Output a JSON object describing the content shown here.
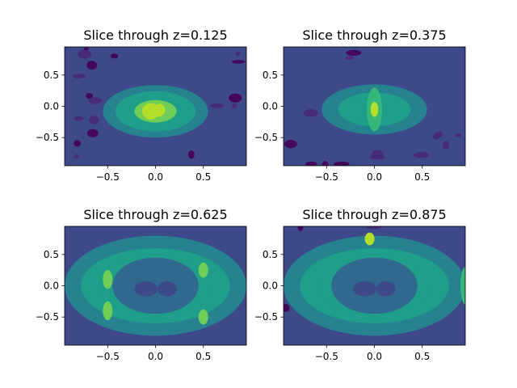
{
  "colormap": [
    "#440154",
    "#482878",
    "#3e4989",
    "#31688e",
    "#26828e",
    "#1f9e89",
    "#35b779",
    "#6ece58",
    "#b5de2b",
    "#fde725"
  ],
  "chart_data": [
    {
      "type": "heatmap",
      "subtype": "filled-contour",
      "title": "Slice through z=0.125",
      "xlabel": "",
      "ylabel": "",
      "xlim": [
        -0.95,
        0.95
      ],
      "ylim": [
        -0.95,
        0.95
      ],
      "xticks": [
        -0.5,
        0.0,
        0.5
      ],
      "xtick_labels": [
        "−0.5",
        "0.0",
        "0.5"
      ],
      "yticks": [
        -0.5,
        0.0,
        0.5
      ],
      "ytick_labels": [
        "−0.5",
        "0.0",
        "0.5"
      ],
      "grid": false,
      "colormap": "viridis",
      "features": [
        {
          "kind": "ring",
          "center": [
            0.0,
            -0.08
          ],
          "radii": [
            0.55,
            0.42
          ],
          "level": 4
        },
        {
          "kind": "ring",
          "center": [
            0.0,
            -0.08
          ],
          "radii": [
            0.42,
            0.32
          ],
          "level": 5
        },
        {
          "kind": "blob",
          "center": [
            0.0,
            -0.08
          ],
          "radii": [
            0.22,
            0.18
          ],
          "level": 7
        },
        {
          "kind": "blob",
          "center": [
            -0.05,
            -0.08
          ],
          "radii": [
            0.09,
            0.13
          ],
          "level": 8
        },
        {
          "kind": "blob",
          "center": [
            0.04,
            -0.06
          ],
          "radii": [
            0.06,
            0.1
          ],
          "level": 8
        }
      ]
    },
    {
      "type": "heatmap",
      "subtype": "filled-contour",
      "title": "Slice through z=0.375",
      "xlabel": "",
      "ylabel": "",
      "xlim": [
        -0.95,
        0.95
      ],
      "ylim": [
        -0.95,
        0.95
      ],
      "xticks": [
        -0.5,
        0.0,
        0.5
      ],
      "xtick_labels": [
        "−0.5",
        "0.0",
        "0.5"
      ],
      "yticks": [
        -0.5,
        0.0,
        0.5
      ],
      "ytick_labels": [
        "−0.5",
        "0.0",
        "0.5"
      ],
      "grid": false,
      "colormap": "viridis",
      "features": [
        {
          "kind": "ring",
          "center": [
            0.0,
            -0.05
          ],
          "radii": [
            0.55,
            0.4
          ],
          "level": 4
        },
        {
          "kind": "ring",
          "center": [
            0.0,
            -0.05
          ],
          "radii": [
            0.38,
            0.27
          ],
          "level": 5
        },
        {
          "kind": "blob",
          "center": [
            0.0,
            -0.05
          ],
          "radii": [
            0.08,
            0.35
          ],
          "level": 6
        },
        {
          "kind": "blob",
          "center": [
            0.0,
            -0.05
          ],
          "radii": [
            0.04,
            0.12
          ],
          "level": 8
        }
      ]
    },
    {
      "type": "heatmap",
      "subtype": "filled-contour",
      "title": "Slice through z=0.625",
      "xlabel": "",
      "ylabel": "",
      "xlim": [
        -0.95,
        0.95
      ],
      "ylim": [
        -0.95,
        0.95
      ],
      "xticks": [
        -0.5,
        0.0,
        0.5
      ],
      "xtick_labels": [
        "−0.5",
        "0.0",
        "0.5"
      ],
      "yticks": [
        -0.5,
        0.0,
        0.5
      ],
      "ytick_labels": [
        "−0.5",
        "0.0",
        "0.5"
      ],
      "grid": false,
      "colormap": "viridis",
      "features": [
        {
          "kind": "ring",
          "center": [
            0.0,
            0.0
          ],
          "radii": [
            0.95,
            0.8
          ],
          "level": 4
        },
        {
          "kind": "ring",
          "center": [
            0.0,
            0.0
          ],
          "radii": [
            0.78,
            0.6
          ],
          "level": 5
        },
        {
          "kind": "blob",
          "center": [
            -0.5,
            0.1
          ],
          "radii": [
            0.05,
            0.15
          ],
          "level": 7
        },
        {
          "kind": "blob",
          "center": [
            -0.5,
            -0.4
          ],
          "radii": [
            0.05,
            0.15
          ],
          "level": 7
        },
        {
          "kind": "blob",
          "center": [
            0.5,
            0.25
          ],
          "radii": [
            0.05,
            0.12
          ],
          "level": 7
        },
        {
          "kind": "blob",
          "center": [
            0.5,
            -0.5
          ],
          "radii": [
            0.05,
            0.12
          ],
          "level": 7
        }
      ]
    },
    {
      "type": "heatmap",
      "subtype": "filled-contour",
      "title": "Slice through z=0.875",
      "xlabel": "",
      "ylabel": "",
      "xlim": [
        -0.95,
        0.95
      ],
      "ylim": [
        -0.95,
        0.95
      ],
      "xticks": [
        -0.5,
        0.0,
        0.5
      ],
      "xtick_labels": [
        "−0.5",
        "0.0",
        "0.5"
      ],
      "yticks": [
        -0.5,
        0.0,
        0.5
      ],
      "ytick_labels": [
        "−0.5",
        "0.0",
        "0.5"
      ],
      "grid": false,
      "colormap": "viridis",
      "features": [
        {
          "kind": "ring",
          "center": [
            0.0,
            0.0
          ],
          "radii": [
            0.95,
            0.8
          ],
          "level": 4
        },
        {
          "kind": "ring",
          "center": [
            0.0,
            0.0
          ],
          "radii": [
            0.78,
            0.6
          ],
          "level": 5
        },
        {
          "kind": "blob",
          "center": [
            -0.05,
            0.75
          ],
          "radii": [
            0.05,
            0.1
          ],
          "level": 8
        },
        {
          "kind": "blob",
          "center": [
            0.95,
            0.0
          ],
          "radii": [
            0.05,
            0.3
          ],
          "level": 6
        }
      ]
    }
  ]
}
